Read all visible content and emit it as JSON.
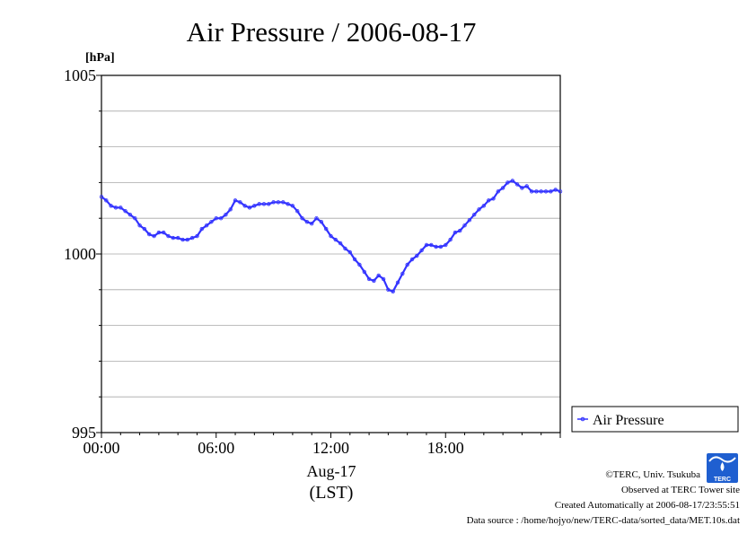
{
  "chart_data": {
    "type": "line",
    "title": "Air Pressure / 2006-08-17",
    "y_unit": "[hPa]",
    "ylim": [
      995,
      1005
    ],
    "yticks": [
      "1005",
      "1000",
      "995"
    ],
    "y_minor_step": 1,
    "xlim": [
      0,
      24
    ],
    "xtick_values": [
      0,
      6,
      12,
      18
    ],
    "xticks": [
      "00:00",
      "06:00",
      "12:00",
      "18:00"
    ],
    "xlabel_line1": "Aug-17",
    "xlabel_line2": "(LST)",
    "grid": true,
    "legend_position": "right-bottom",
    "series": [
      {
        "name": "Air Pressure",
        "color": "#3333ff",
        "x": [
          0.0,
          0.25,
          0.5,
          0.75,
          1.0,
          1.25,
          1.5,
          1.75,
          2.0,
          2.25,
          2.5,
          2.75,
          3.0,
          3.25,
          3.5,
          3.75,
          4.0,
          4.25,
          4.5,
          4.75,
          5.0,
          5.25,
          5.5,
          5.75,
          6.0,
          6.25,
          6.5,
          6.75,
          7.0,
          7.25,
          7.5,
          7.75,
          8.0,
          8.25,
          8.5,
          8.75,
          9.0,
          9.25,
          9.5,
          9.75,
          10.0,
          10.25,
          10.5,
          10.75,
          11.0,
          11.25,
          11.5,
          11.75,
          12.0,
          12.25,
          12.5,
          12.75,
          13.0,
          13.25,
          13.5,
          13.75,
          14.0,
          14.25,
          14.5,
          14.75,
          15.0,
          15.25,
          15.5,
          15.75,
          16.0,
          16.25,
          16.5,
          16.75,
          17.0,
          17.25,
          17.5,
          17.75,
          18.0,
          18.25,
          18.5,
          18.75,
          19.0,
          19.25,
          19.5,
          19.75,
          20.0,
          20.25,
          20.5,
          20.75,
          21.0,
          21.25,
          21.5,
          21.75,
          22.0,
          22.25,
          22.5,
          22.75,
          23.0,
          23.25,
          23.5,
          23.75,
          24.0
        ],
        "y": [
          1001.6,
          1001.5,
          1001.35,
          1001.3,
          1001.3,
          1001.2,
          1001.1,
          1001.0,
          1000.8,
          1000.7,
          1000.55,
          1000.5,
          1000.6,
          1000.6,
          1000.5,
          1000.45,
          1000.45,
          1000.4,
          1000.4,
          1000.45,
          1000.5,
          1000.7,
          1000.8,
          1000.9,
          1001.0,
          1001.0,
          1001.1,
          1001.25,
          1001.5,
          1001.45,
          1001.35,
          1001.3,
          1001.35,
          1001.4,
          1001.4,
          1001.4,
          1001.45,
          1001.45,
          1001.45,
          1001.4,
          1001.35,
          1001.2,
          1001.0,
          1000.9,
          1000.85,
          1001.0,
          1000.9,
          1000.7,
          1000.5,
          1000.4,
          1000.3,
          1000.15,
          1000.05,
          999.85,
          999.7,
          999.5,
          999.3,
          999.25,
          999.4,
          999.3,
          999.0,
          998.95,
          999.2,
          999.45,
          999.7,
          999.85,
          999.95,
          1000.1,
          1000.25,
          1000.25,
          1000.2,
          1000.2,
          1000.25,
          1000.4,
          1000.6,
          1000.65,
          1000.8,
          1000.95,
          1001.1,
          1001.25,
          1001.35,
          1001.5,
          1001.55,
          1001.75,
          1001.85,
          1002.0,
          1002.05,
          1001.95,
          1001.85,
          1001.9,
          1001.75,
          1001.75,
          1001.75,
          1001.75,
          1001.75,
          1001.8,
          1001.75
        ]
      }
    ]
  },
  "footer": {
    "credit": "©TERC, Univ. Tsukuba",
    "site": "Observed at TERC Tower site",
    "created": "Created Automatically at 2006-08-17/23:55:51",
    "source": "Data source : /home/hojyo/new/TERC-data/sorted_data/MET.10s.dat",
    "logo_text": "TERC"
  }
}
